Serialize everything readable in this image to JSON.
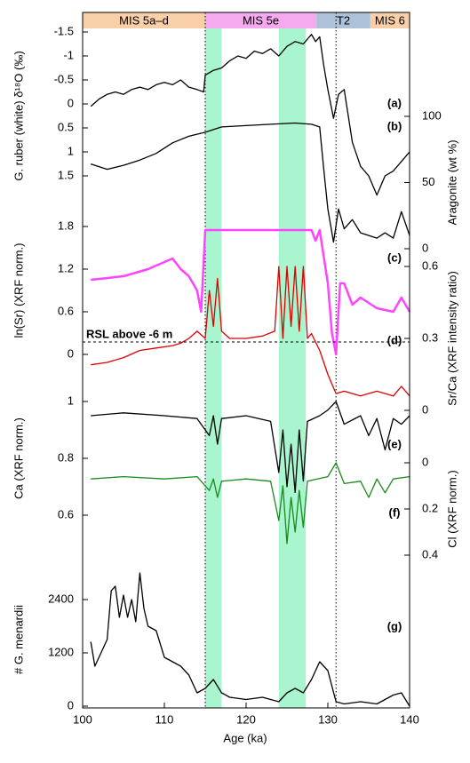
{
  "chart_data": {
    "type": "stacked-line",
    "xlabel": "Age (ka)",
    "xlim": [
      100,
      140
    ],
    "xticks": [
      100,
      110,
      120,
      130,
      140
    ],
    "stages": [
      {
        "label": "MIS 5a–d",
        "start": 100,
        "end": 115,
        "color": "#f8cfa8"
      },
      {
        "label": "MIS 5e",
        "start": 115,
        "end": 128.6,
        "color": "#f5a9ef"
      },
      {
        "label": "T2",
        "start": 128.6,
        "end": 135.2,
        "color": "#adc2d8"
      },
      {
        "label": "MIS 6",
        "start": 135.2,
        "end": 140,
        "color": "#f8cfa8"
      }
    ],
    "shaded": [
      [
        115,
        117
      ],
      [
        124,
        127.3
      ]
    ],
    "shade_color": "#a8f5cf",
    "dotted": [
      115,
      131
    ],
    "panels": [
      {
        "label": "(a)",
        "ylabel": "G. ruber (white) δ¹⁸O (‰)",
        "side": "left",
        "color": "#000000",
        "ylim": [
          2.2,
          -1.7
        ],
        "yticks": [
          -1.5,
          -1,
          -0.5,
          0,
          0.5,
          1,
          1.5
        ],
        "x": [
          101,
          102,
          103,
          104,
          105,
          106,
          107,
          108,
          109,
          110,
          111,
          112,
          113,
          114,
          114.8,
          115,
          116,
          117,
          118,
          119,
          120,
          121,
          122,
          123,
          124,
          125,
          126,
          127,
          128,
          128.5,
          129,
          129.5,
          130,
          130.7,
          131.3,
          132,
          133,
          134,
          135,
          136,
          137,
          138,
          139,
          140
        ],
        "values": [
          0.05,
          -0.1,
          -0.2,
          -0.25,
          -0.2,
          -0.3,
          -0.35,
          -0.3,
          -0.4,
          -0.45,
          -0.4,
          -0.5,
          -0.35,
          -0.3,
          -0.25,
          -0.6,
          -0.7,
          -0.75,
          -0.9,
          -1.0,
          -0.95,
          -1.1,
          -1.05,
          -1.15,
          -1.0,
          -1.2,
          -1.3,
          -1.25,
          -1.45,
          -1.3,
          -1.4,
          -0.8,
          -0.3,
          0.3,
          -0.2,
          -0.3,
          0.8,
          1.3,
          1.5,
          1.9,
          1.5,
          1.4,
          1.2,
          1.0
        ]
      },
      {
        "label": "(b)",
        "ylabel": "Aragonite (wt %)",
        "side": "right",
        "color": "#000000",
        "ylim": [
          0,
          100
        ],
        "yticks": [
          0,
          50,
          100
        ],
        "x": [
          101,
          103,
          105,
          107,
          109,
          111,
          113,
          115,
          117,
          120,
          123,
          126,
          128,
          129,
          129.5,
          130,
          130.7,
          131.3,
          132,
          133,
          134,
          135,
          136,
          137,
          138,
          139,
          140
        ],
        "values": [
          64,
          60,
          63,
          67,
          72,
          80,
          85,
          88,
          92,
          93,
          94,
          95,
          94,
          92,
          60,
          30,
          5,
          30,
          15,
          22,
          12,
          10,
          8,
          12,
          8,
          28,
          10
        ]
      },
      {
        "label": "(c)",
        "ylabel": "ln(Sr) (XRF norm.)",
        "side": "left",
        "color": "#ff44ff",
        "ylim": [
          0,
          1.8
        ],
        "yticks": [
          0,
          0.6,
          1.2,
          1.8
        ],
        "x": [
          101,
          105,
          108,
          110,
          111,
          112,
          113,
          114,
          114.5,
          115,
          117,
          120,
          125,
          128,
          128.5,
          129,
          130,
          130.5,
          131,
          131.5,
          132,
          133,
          134,
          136,
          138,
          139,
          140
        ],
        "values": [
          1.05,
          1.1,
          1.2,
          1.3,
          1.35,
          1.2,
          1.1,
          0.9,
          0.6,
          1.75,
          1.75,
          1.75,
          1.75,
          1.75,
          1.6,
          1.75,
          1.0,
          0.3,
          0,
          1.0,
          1.0,
          0.7,
          0.8,
          0.65,
          0.6,
          0.8,
          0.6
        ]
      },
      {
        "label": "(d)",
        "ylabel": "Sr/Ca (XRF intensity ratio)",
        "side": "right",
        "color": "#dd0000",
        "ylim": [
          0,
          0.6
        ],
        "yticks": [
          0,
          0.3,
          0.6
        ],
        "rsl": {
          "label": "RSL above -6 m",
          "value": 0.285
        },
        "x": [
          101,
          103,
          105,
          107,
          109,
          111,
          112,
          113,
          114,
          115,
          115.5,
          116,
          116.5,
          117,
          118,
          120,
          122,
          123.5,
          124,
          124.5,
          125,
          125.5,
          126,
          126.5,
          127,
          127.5,
          128,
          129,
          130,
          131,
          132,
          134,
          136,
          138,
          139,
          140
        ],
        "values": [
          0.19,
          0.2,
          0.22,
          0.25,
          0.26,
          0.27,
          0.28,
          0.3,
          0.33,
          0.3,
          0.5,
          0.35,
          0.55,
          0.33,
          0.3,
          0.3,
          0.31,
          0.33,
          0.6,
          0.3,
          0.6,
          0.35,
          0.6,
          0.33,
          0.6,
          0.3,
          0.32,
          0.25,
          0.15,
          0.07,
          0.08,
          0.06,
          0.08,
          0.06,
          0.1,
          0.06
        ]
      },
      {
        "label": "(e)",
        "ylabel": "Ca (XRF norm.)",
        "side": "left",
        "color": "#000000",
        "ylim": [
          0.6,
          1
        ],
        "yticks": [
          0.6,
          0.8,
          1
        ],
        "x": [
          101,
          105,
          110,
          114,
          115.5,
          116,
          116.5,
          117,
          120,
          123,
          124,
          124.5,
          125,
          125.5,
          126,
          126.5,
          127,
          127.5,
          129,
          130,
          131,
          132,
          134,
          135,
          136,
          137,
          138,
          139,
          140
        ],
        "values": [
          0.95,
          0.96,
          0.95,
          0.94,
          0.88,
          0.95,
          0.85,
          0.94,
          0.95,
          0.93,
          0.75,
          0.9,
          0.7,
          0.85,
          0.68,
          0.9,
          0.72,
          0.93,
          0.95,
          0.97,
          1.0,
          0.92,
          0.95,
          0.88,
          0.94,
          0.83,
          0.94,
          0.92,
          0.95
        ]
      },
      {
        "label": "(f)",
        "ylabel": "Cl (XRF norm.)",
        "side": "right",
        "color": "#1a8a1a",
        "ylim": [
          0.45,
          -0.05
        ],
        "yticks": [
          0,
          0.2,
          0.4
        ],
        "x": [
          101,
          105,
          110,
          114,
          115.5,
          116,
          116.5,
          117,
          120,
          123,
          124,
          124.5,
          125,
          125.5,
          126,
          126.5,
          127,
          127.5,
          130,
          131,
          132,
          134,
          135,
          136,
          137,
          138,
          140
        ],
        "values": [
          0.07,
          0.06,
          0.07,
          0.06,
          0.12,
          0.07,
          0.15,
          0.08,
          0.07,
          0.08,
          0.25,
          0.1,
          0.35,
          0.15,
          0.3,
          0.12,
          0.28,
          0.08,
          0.06,
          0,
          0.09,
          0.08,
          0.15,
          0.07,
          0.13,
          0.07,
          0.06
        ]
      },
      {
        "label": "(g)",
        "ylabel": "# G. menardii",
        "side": "left",
        "color": "#000000",
        "ylim": [
          0,
          3000
        ],
        "yticks": [
          0,
          1200,
          2400
        ],
        "x": [
          101,
          101.5,
          103,
          103.5,
          104,
          104.5,
          105,
          105.5,
          106,
          106.5,
          107,
          107.5,
          108,
          109,
          110,
          111,
          112,
          113,
          114,
          115,
          116,
          117,
          118,
          120,
          122,
          124,
          125,
          126,
          127,
          128,
          129,
          130,
          131,
          132,
          134,
          136,
          138,
          139,
          140
        ],
        "values": [
          1450,
          900,
          1500,
          2600,
          2700,
          2000,
          2500,
          2000,
          2400,
          1900,
          3000,
          2200,
          1800,
          1700,
          1100,
          1000,
          900,
          700,
          300,
          400,
          600,
          300,
          200,
          150,
          200,
          100,
          300,
          400,
          300,
          600,
          1000,
          800,
          100,
          50,
          100,
          50,
          250,
          300,
          0
        ]
      }
    ]
  }
}
